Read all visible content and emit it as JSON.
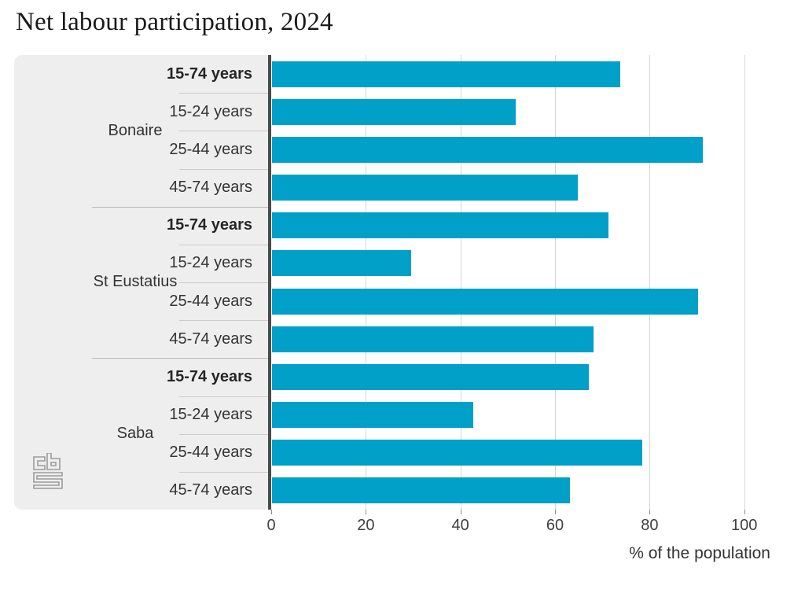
{
  "title": "Net labour participation, 2024",
  "colors": {
    "bar": "#00a0c8",
    "panel_background": "#eeeeee",
    "axis_line": "#4a4a4a",
    "gridline": "#d6d6d6",
    "separator_minor": "#cccccc",
    "separator_major": "#b9b9b9",
    "text": "#333333",
    "logo": "#9b9b9b"
  },
  "logo": {
    "name": "cbs-logo"
  },
  "chart_data": {
    "type": "bar",
    "orientation": "horizontal",
    "title": "Net labour participation, 2024",
    "xlabel": "% of the population",
    "xlim": [
      0,
      110
    ],
    "xticks": [
      0,
      20,
      40,
      60,
      80,
      100
    ],
    "grid": true,
    "legend": "none",
    "groups": [
      {
        "label": "Bonaire",
        "rows": [
          {
            "label": "15-74 years",
            "bold": true,
            "value": 73.6
          },
          {
            "label": "15-24 years",
            "bold": false,
            "value": 51.5
          },
          {
            "label": "25-44 years",
            "bold": false,
            "value": 91.0
          },
          {
            "label": "45-74 years",
            "bold": false,
            "value": 64.6
          }
        ]
      },
      {
        "label": "St Eustatius",
        "rows": [
          {
            "label": "15-74 years",
            "bold": true,
            "value": 71.1
          },
          {
            "label": "15-24 years",
            "bold": false,
            "value": 29.4
          },
          {
            "label": "25-44 years",
            "bold": false,
            "value": 90.0
          },
          {
            "label": "45-74 years",
            "bold": false,
            "value": 68.0
          }
        ]
      },
      {
        "label": "Saba",
        "rows": [
          {
            "label": "15-74 years",
            "bold": true,
            "value": 66.9
          },
          {
            "label": "15-24 years",
            "bold": false,
            "value": 42.5
          },
          {
            "label": "25-44 years",
            "bold": false,
            "value": 78.3
          },
          {
            "label": "45-74 years",
            "bold": false,
            "value": 63.0
          }
        ]
      }
    ]
  }
}
